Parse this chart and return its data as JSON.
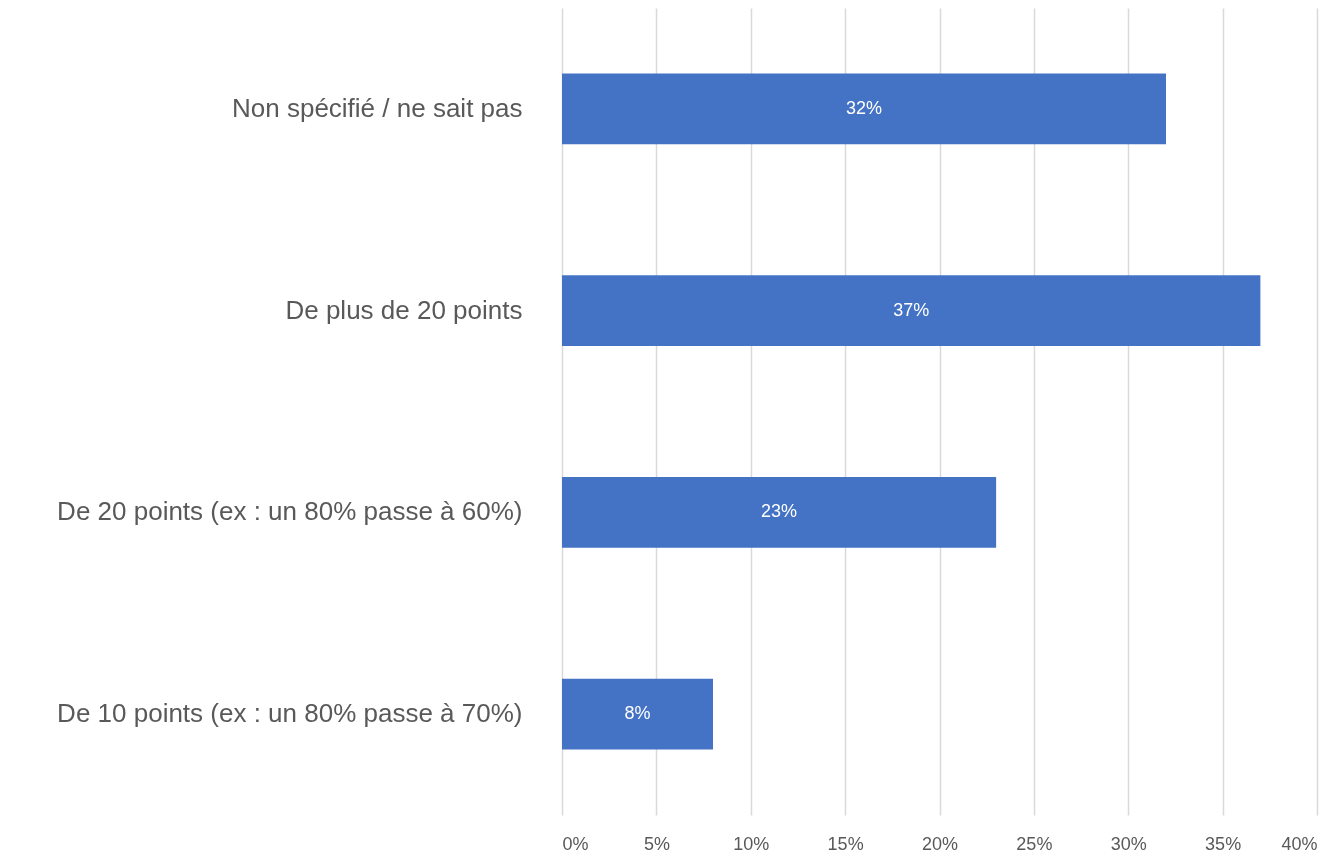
{
  "chart_data": {
    "type": "bar",
    "orientation": "horizontal",
    "categories": [
      "Non spécifié / ne sait pas",
      "De plus de 20 points",
      "De 20 points (ex : un 80% passe à 60%)",
      "De 10 points (ex : un 80% passe à 70%)"
    ],
    "values": [
      32,
      37,
      23,
      8
    ],
    "color": "#4472c4",
    "value_labels": [
      "32%",
      "37%",
      "23%",
      "8%"
    ],
    "xlim": [
      0,
      40
    ],
    "xticks": [
      {
        "value": 0,
        "label": "0%"
      },
      {
        "value": 5,
        "label": "5%"
      },
      {
        "value": 10,
        "label": "10%"
      },
      {
        "value": 15,
        "label": "15%"
      },
      {
        "value": 20,
        "label": "20%"
      },
      {
        "value": 25,
        "label": "25%"
      },
      {
        "value": 30,
        "label": "30%"
      },
      {
        "value": 35,
        "label": "35%"
      },
      {
        "value": 40,
        "label": "40%"
      }
    ],
    "grid": "x"
  }
}
